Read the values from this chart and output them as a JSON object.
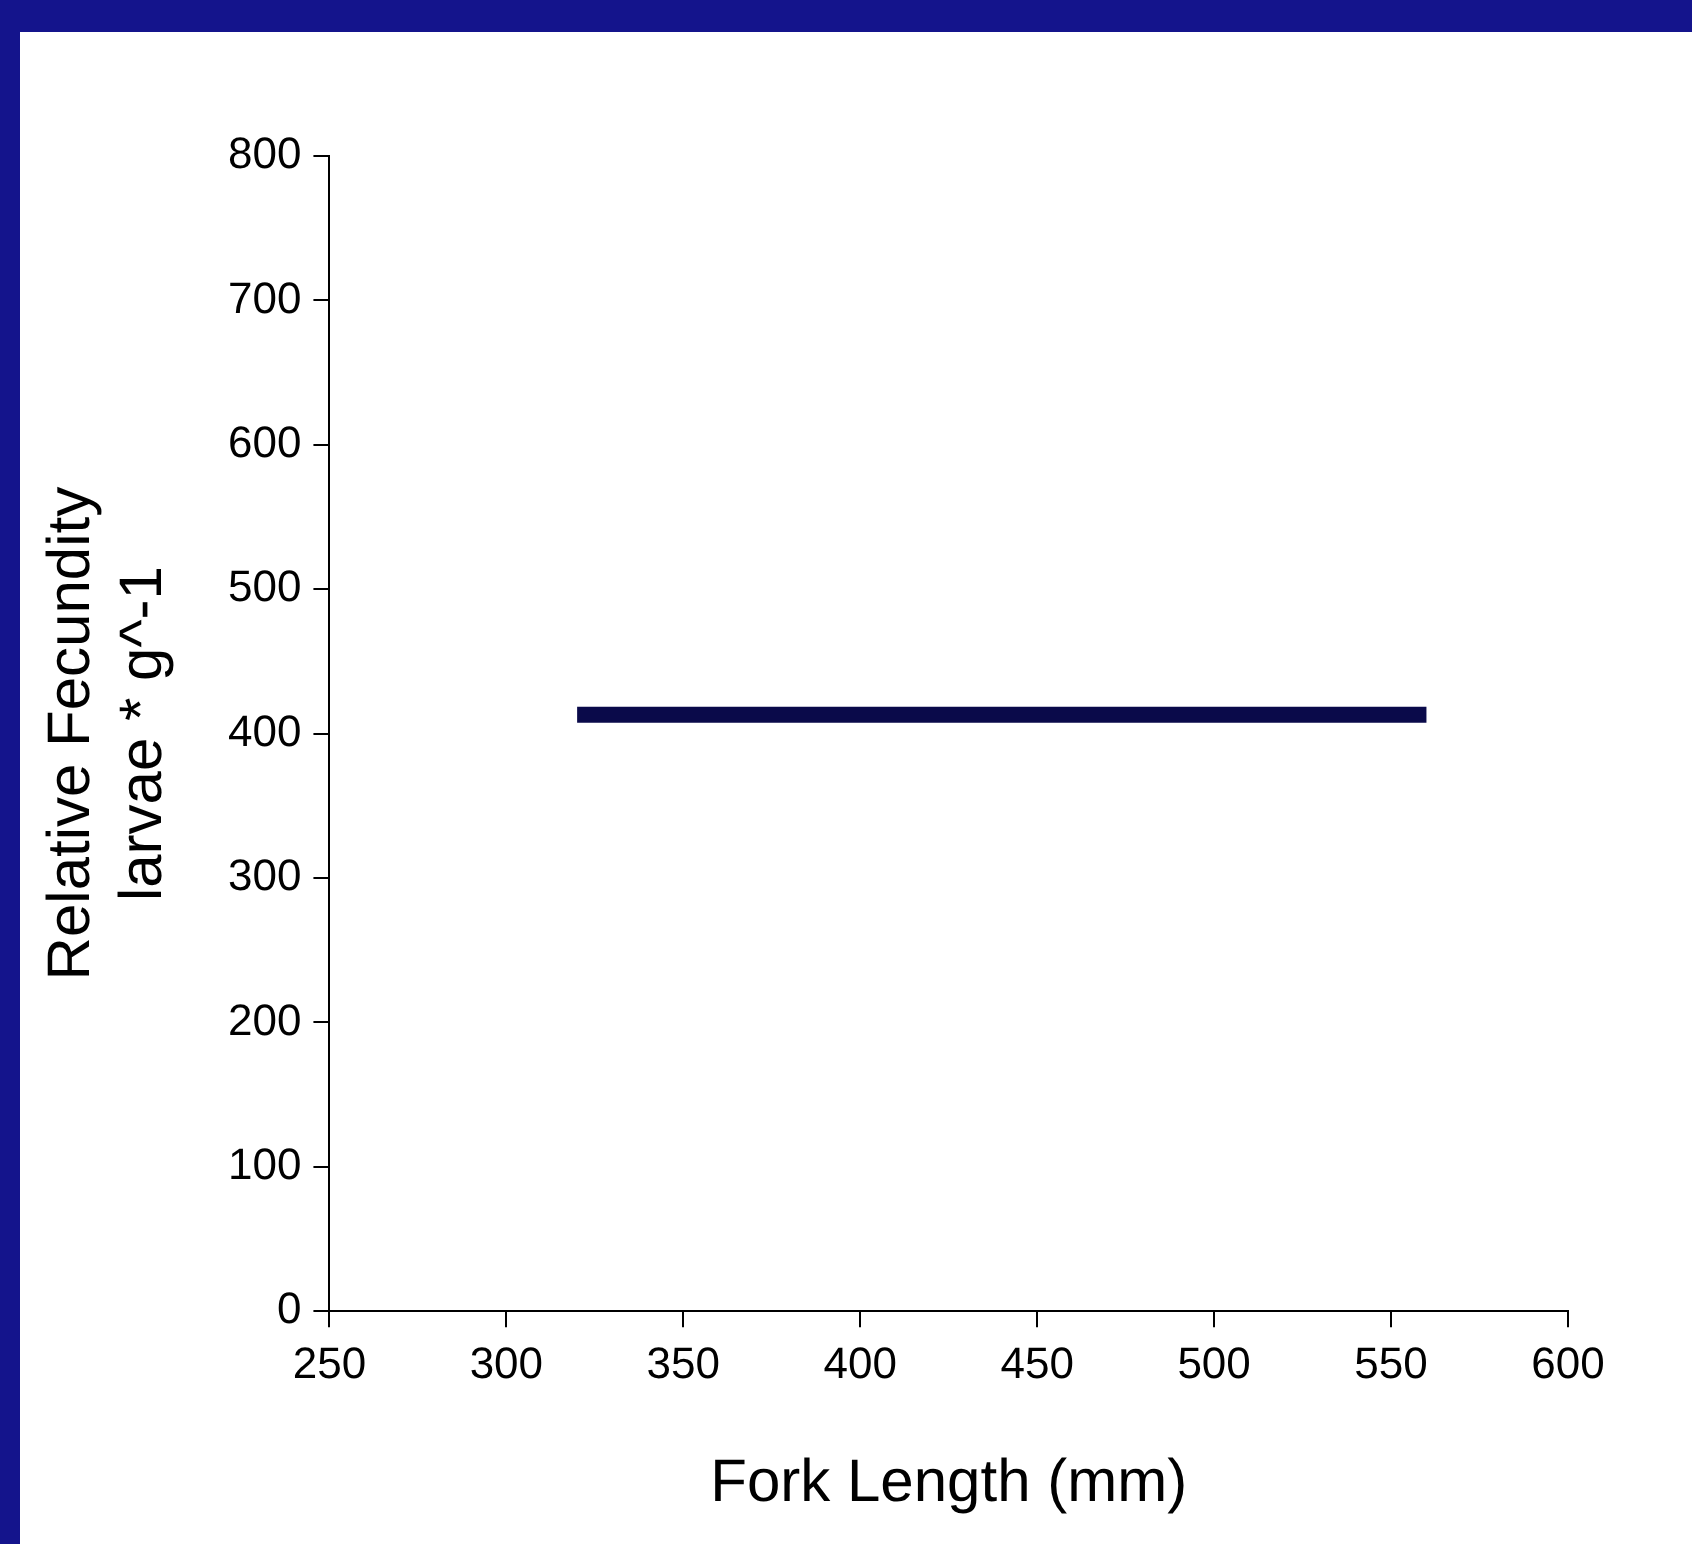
{
  "chart_data": {
    "type": "line",
    "xlabel": "Fork Length (mm)",
    "ylabel": "Relative Fecundity\nlarvae * g^-1",
    "series": [
      {
        "color": "#0a0a4a",
        "x": [
          320,
          560
        ],
        "values": [
          413,
          413
        ]
      }
    ],
    "xlim": [
      250,
      600
    ],
    "xticks": [
      250,
      300,
      350,
      400,
      450,
      500,
      550,
      600
    ],
    "ylim": [
      0,
      800
    ],
    "yticks": [
      0,
      100,
      200,
      300,
      400,
      500,
      600,
      700,
      800
    ],
    "grid": false,
    "legend": false,
    "marker": "none",
    "line_style": "solid"
  }
}
